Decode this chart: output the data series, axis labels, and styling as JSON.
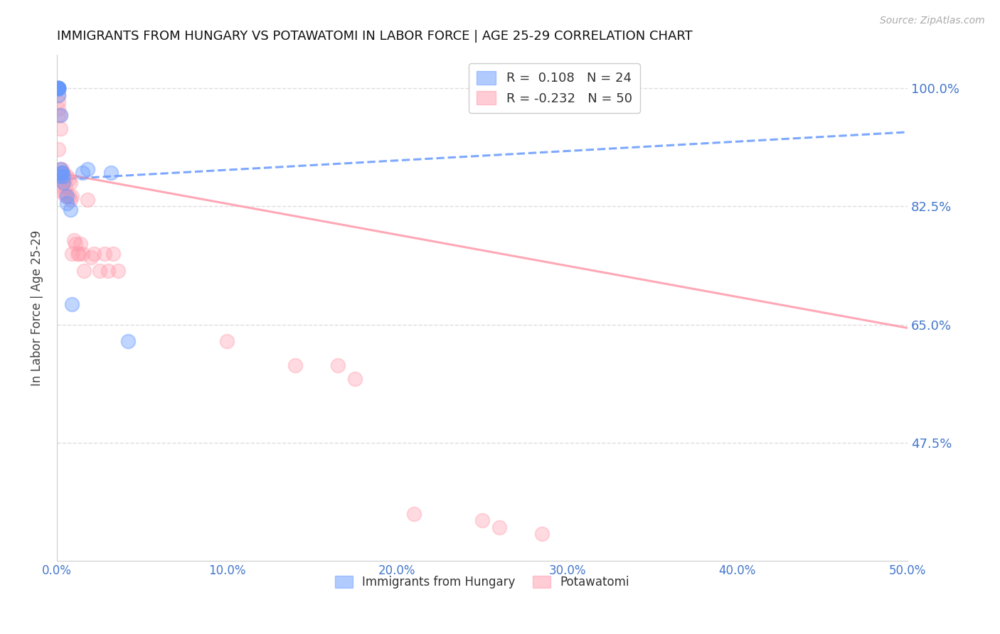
{
  "title": "IMMIGRANTS FROM HUNGARY VS POTAWATOMI IN LABOR FORCE | AGE 25-29 CORRELATION CHART",
  "source": "Source: ZipAtlas.com",
  "ylabel": "In Labor Force | Age 25-29",
  "xlim": [
    0.0,
    0.5
  ],
  "ylim": [
    0.3,
    1.05
  ],
  "ytick_labels": [
    "47.5%",
    "65.0%",
    "82.5%",
    "100.0%"
  ],
  "ytick_values": [
    0.475,
    0.65,
    0.825,
    1.0
  ],
  "xtick_labels": [
    "0.0%",
    "10.0%",
    "20.0%",
    "30.0%",
    "40.0%",
    "50.0%"
  ],
  "xtick_values": [
    0.0,
    0.1,
    0.2,
    0.3,
    0.4,
    0.5
  ],
  "hungary_color": "#6699ff",
  "potawatomi_color": "#ff99aa",
  "hungary_label": "Immigrants from Hungary",
  "potawatomi_label": "Potawatomi",
  "hungary_R": 0.108,
  "hungary_N": 24,
  "potawatomi_R": -0.232,
  "potawatomi_N": 50,
  "hungary_line_x": [
    0.0,
    0.5
  ],
  "hungary_line_y": [
    0.865,
    0.935
  ],
  "potawatomi_line_x": [
    0.0,
    0.5
  ],
  "potawatomi_line_y": [
    0.875,
    0.645
  ],
  "hungary_scatter_x": [
    0.001,
    0.001,
    0.001,
    0.001,
    0.001,
    0.001,
    0.001,
    0.001,
    0.001,
    0.002,
    0.002,
    0.002,
    0.003,
    0.003,
    0.004,
    0.004,
    0.006,
    0.006,
    0.008,
    0.009,
    0.015,
    0.018,
    0.032,
    0.042
  ],
  "hungary_scatter_y": [
    1.0,
    1.0,
    1.0,
    1.0,
    1.0,
    1.0,
    1.0,
    1.0,
    0.99,
    0.96,
    0.88,
    0.87,
    0.875,
    0.875,
    0.87,
    0.86,
    0.84,
    0.83,
    0.82,
    0.68,
    0.875,
    0.88,
    0.875,
    0.625
  ],
  "potawatomi_scatter_x": [
    0.001,
    0.001,
    0.001,
    0.001,
    0.001,
    0.001,
    0.002,
    0.002,
    0.002,
    0.002,
    0.003,
    0.003,
    0.003,
    0.003,
    0.004,
    0.004,
    0.004,
    0.005,
    0.005,
    0.005,
    0.006,
    0.007,
    0.007,
    0.008,
    0.008,
    0.009,
    0.009,
    0.01,
    0.011,
    0.012,
    0.013,
    0.014,
    0.015,
    0.016,
    0.018,
    0.02,
    0.022,
    0.025,
    0.028,
    0.03,
    0.033,
    0.036,
    0.1,
    0.14,
    0.165,
    0.175,
    0.21,
    0.25,
    0.26,
    0.285
  ],
  "potawatomi_scatter_y": [
    1.0,
    0.99,
    0.98,
    0.97,
    0.96,
    0.91,
    0.96,
    0.94,
    0.88,
    0.865,
    0.88,
    0.875,
    0.865,
    0.855,
    0.875,
    0.86,
    0.845,
    0.855,
    0.845,
    0.84,
    0.87,
    0.865,
    0.84,
    0.86,
    0.835,
    0.84,
    0.755,
    0.775,
    0.77,
    0.755,
    0.755,
    0.77,
    0.755,
    0.73,
    0.835,
    0.75,
    0.755,
    0.73,
    0.755,
    0.73,
    0.755,
    0.73,
    0.625,
    0.59,
    0.59,
    0.57,
    0.37,
    0.36,
    0.35,
    0.34
  ],
  "background_color": "#ffffff",
  "grid_color": "#dddddd",
  "axis_label_color": "#4477cc",
  "title_color": "#111111"
}
